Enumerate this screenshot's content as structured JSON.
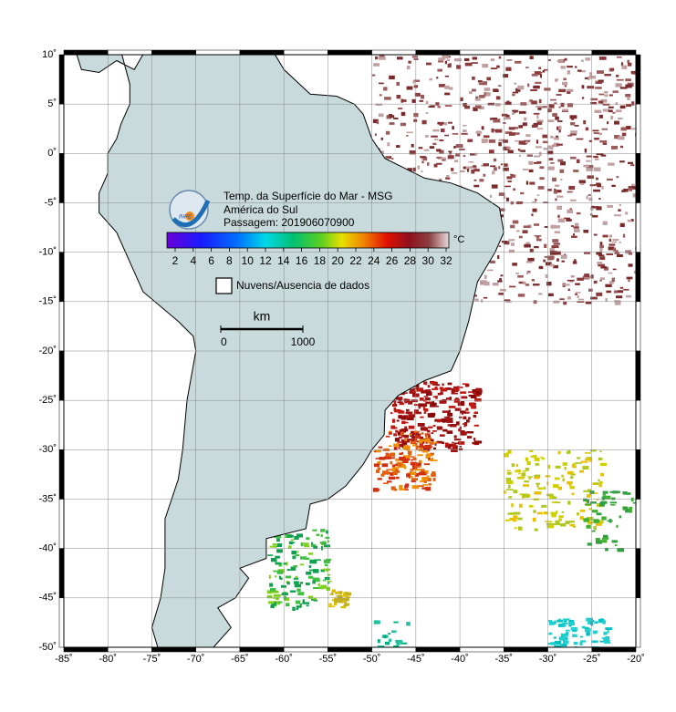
{
  "map": {
    "legend_title": [
      "Temp. da Superfície do Mar - MSG",
      "América do Sul",
      "Passagem: 201906070900"
    ],
    "colorbar_unit": "°C",
    "colorbar_ticks": [
      2,
      4,
      6,
      8,
      10,
      12,
      14,
      16,
      18,
      20,
      22,
      24,
      26,
      28,
      30,
      32
    ],
    "no_data_label": "Nuvens/Ausencia de dados",
    "scale_unit": "km",
    "scale_ticks": [
      0,
      1000
    ],
    "logo_text": "INPE",
    "lon_ticks": [
      {
        "value": -85,
        "label": "-85˚"
      },
      {
        "value": -80,
        "label": "-80˚"
      },
      {
        "value": -75,
        "label": "-75˚"
      },
      {
        "value": -70,
        "label": "-70˚"
      },
      {
        "value": -65,
        "label": "-65˚"
      },
      {
        "value": -60,
        "label": "-60˚"
      },
      {
        "value": -55,
        "label": "-55˚"
      },
      {
        "value": -50,
        "label": "-50˚"
      },
      {
        "value": -45,
        "label": "-45˚"
      },
      {
        "value": -40,
        "label": "-40˚"
      },
      {
        "value": -35,
        "label": "-35˚"
      },
      {
        "value": -30,
        "label": "-30˚"
      },
      {
        "value": -25,
        "label": "-25˚"
      },
      {
        "value": -20,
        "label": "-20˚"
      }
    ],
    "lat_ticks": [
      {
        "value": 10,
        "label": "10˚"
      },
      {
        "value": 5,
        "label": "5˚"
      },
      {
        "value": 0,
        "label": "0˚"
      },
      {
        "value": -5,
        "label": "-5˚"
      },
      {
        "value": -10,
        "label": "-10˚"
      },
      {
        "value": -15,
        "label": "-15˚"
      },
      {
        "value": -20,
        "label": "-20˚"
      },
      {
        "value": -25,
        "label": "-25˚"
      },
      {
        "value": -30,
        "label": "-30˚"
      },
      {
        "value": -35,
        "label": "-35˚"
      },
      {
        "value": -40,
        "label": "-40˚"
      },
      {
        "value": -45,
        "label": "-45˚"
      },
      {
        "value": -50,
        "label": "-50˚"
      }
    ]
  }
}
